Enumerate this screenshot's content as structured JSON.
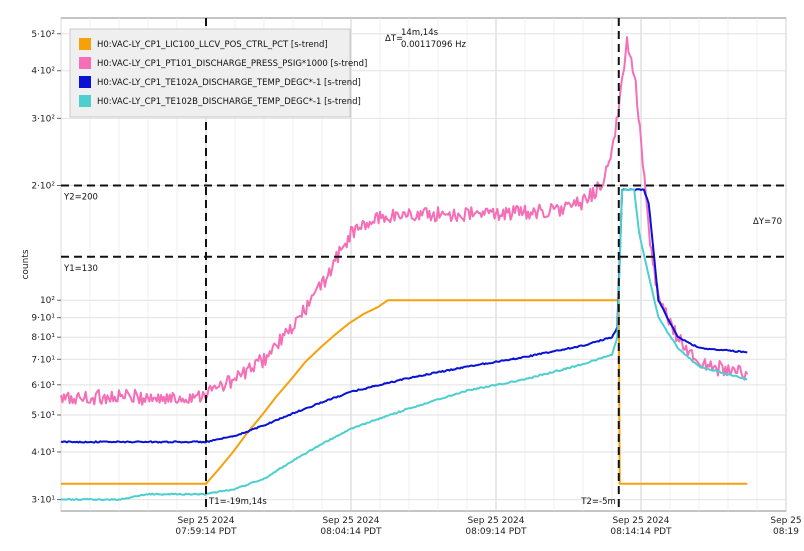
{
  "chart_data": {
    "type": "line",
    "title": "",
    "xlabel": "",
    "ylabel": "counts",
    "yscale": "log",
    "ylim": [
      28,
      550
    ],
    "xlim": [
      "2024-09-25 07:54:14",
      "2024-09-25 08:19:14"
    ],
    "time_zone": "PDT",
    "grid": true,
    "legend_position": "top-left",
    "y_ticks": [
      {
        "value": 30,
        "label": "3·10¹"
      },
      {
        "value": 40,
        "label": "4·10¹"
      },
      {
        "value": 50,
        "label": "5·10¹"
      },
      {
        "value": 60,
        "label": "6·10¹"
      },
      {
        "value": 70,
        "label": "7·10¹"
      },
      {
        "value": 80,
        "label": "8·10¹"
      },
      {
        "value": 90,
        "label": "9·10¹"
      },
      {
        "value": 100,
        "label": "10²"
      },
      {
        "value": 200,
        "label": "2·10²"
      },
      {
        "value": 300,
        "label": "3·10²"
      },
      {
        "value": 400,
        "label": "4·10²"
      },
      {
        "value": 500,
        "label": "5·10²"
      }
    ],
    "x_ticks": [
      {
        "time": "2024-09-25 07:59:14",
        "date": "Sep 25 2024",
        "time_label": "07:59:14 PDT"
      },
      {
        "time": "2024-09-25 08:04:14",
        "date": "Sep 25 2024",
        "time_label": "08:04:14 PDT"
      },
      {
        "time": "2024-09-25 08:09:14",
        "date": "Sep 25 2024",
        "time_label": "08:09:14 PDT"
      },
      {
        "time": "2024-09-25 08:14:14",
        "date": "Sep 25 2024",
        "time_label": "08:14:14 PDT"
      },
      {
        "time": "2024-09-25 08:19:14",
        "date": "Sep 25",
        "time_label": "08:19"
      }
    ],
    "cursors": {
      "t1": {
        "time": "2024-09-25 07:59:14",
        "label": "T1=-19m,14s"
      },
      "t2": {
        "time": "2024-09-25 08:13:28",
        "label": "T2=-5m"
      },
      "y1": {
        "value": 130,
        "label": "Y1=130"
      },
      "y2": {
        "value": 200,
        "label": "Y2=200"
      },
      "delta_t_prefix": "ΔT=",
      "delta_t_value": "14m,14s",
      "delta_t_freq": "0.00117096 Hz",
      "delta_y": "ΔY=70"
    },
    "series": [
      {
        "name": "H0:VAC-LY_CP1_LIC100_LLCV_POS_CTRL_PCT [s-trend]",
        "color": "#f5a10a",
        "noise": 0,
        "points": [
          [
            "2024-09-25 07:54:14",
            33
          ],
          [
            "2024-09-25 07:59:14",
            33
          ],
          [
            "2024-09-25 07:59:40",
            36
          ],
          [
            "2024-09-25 08:00:10",
            40
          ],
          [
            "2024-09-25 08:00:40",
            45
          ],
          [
            "2024-09-25 08:01:10",
            50
          ],
          [
            "2024-09-25 08:01:40",
            56
          ],
          [
            "2024-09-25 08:02:10",
            62
          ],
          [
            "2024-09-25 08:02:40",
            69
          ],
          [
            "2024-09-25 08:03:10",
            75
          ],
          [
            "2024-09-25 08:03:40",
            81
          ],
          [
            "2024-09-25 08:04:10",
            87
          ],
          [
            "2024-09-25 08:04:40",
            92
          ],
          [
            "2024-09-25 08:05:10",
            96
          ],
          [
            "2024-09-25 08:05:30",
            100
          ],
          [
            "2024-09-25 08:13:28",
            100
          ],
          [
            "2024-09-25 08:13:30",
            33
          ],
          [
            "2024-09-25 08:17:54",
            33
          ]
        ]
      },
      {
        "name": "H0:VAC-LY_CP1_PT101_DISCHARGE_PRESS_PSIG*1000 [s-trend]",
        "color": "#f46fb7",
        "noise": 0.045,
        "points": [
          [
            "2024-09-25 07:54:14",
            55
          ],
          [
            "2024-09-25 07:56:14",
            56
          ],
          [
            "2024-09-25 07:58:14",
            55
          ],
          [
            "2024-09-25 07:59:14",
            57
          ],
          [
            "2024-09-25 08:00:14",
            62
          ],
          [
            "2024-09-25 08:01:14",
            70
          ],
          [
            "2024-09-25 08:02:14",
            85
          ],
          [
            "2024-09-25 08:03:14",
            110
          ],
          [
            "2024-09-25 08:04:14",
            150
          ],
          [
            "2024-09-25 08:05:14",
            165
          ],
          [
            "2024-09-25 08:06:14",
            168
          ],
          [
            "2024-09-25 08:08:14",
            168
          ],
          [
            "2024-09-25 08:10:14",
            170
          ],
          [
            "2024-09-25 08:11:14",
            172
          ],
          [
            "2024-09-25 08:12:14",
            180
          ],
          [
            "2024-09-25 08:12:50",
            200
          ],
          [
            "2024-09-25 08:13:14",
            240
          ],
          [
            "2024-09-25 08:13:30",
            330
          ],
          [
            "2024-09-25 08:13:45",
            480
          ],
          [
            "2024-09-25 08:14:00",
            400
          ],
          [
            "2024-09-25 08:14:15",
            260
          ],
          [
            "2024-09-25 08:14:30",
            150
          ],
          [
            "2024-09-25 08:14:50",
            100
          ],
          [
            "2024-09-25 08:15:30",
            80
          ],
          [
            "2024-09-25 08:16:14",
            68
          ],
          [
            "2024-09-25 08:17:54",
            64
          ]
        ]
      },
      {
        "name": "H0:VAC-LY_CP1_TE102A_DISCHARGE_TEMP_DEGC*-1 [s-trend]",
        "color": "#0a12d4",
        "noise": 0.004,
        "points": [
          [
            "2024-09-25 07:54:14",
            42.5
          ],
          [
            "2024-09-25 07:59:14",
            42.5
          ],
          [
            "2024-09-25 08:00:14",
            44
          ],
          [
            "2024-09-25 08:01:14",
            47
          ],
          [
            "2024-09-25 08:02:14",
            50.5
          ],
          [
            "2024-09-25 08:03:14",
            54
          ],
          [
            "2024-09-25 08:04:14",
            57.5
          ],
          [
            "2024-09-25 08:05:14",
            60
          ],
          [
            "2024-09-25 08:06:14",
            62.5
          ],
          [
            "2024-09-25 08:08:14",
            67
          ],
          [
            "2024-09-25 08:10:14",
            71
          ],
          [
            "2024-09-25 08:12:14",
            76
          ],
          [
            "2024-09-25 08:13:14",
            80
          ],
          [
            "2024-09-25 08:13:25",
            85
          ],
          [
            "2024-09-25 08:13:35",
            195
          ],
          [
            "2024-09-25 08:14:20",
            195
          ],
          [
            "2024-09-25 08:14:30",
            180
          ],
          [
            "2024-09-25 08:14:50",
            100
          ],
          [
            "2024-09-25 08:15:30",
            80
          ],
          [
            "2024-09-25 08:16:14",
            75
          ],
          [
            "2024-09-25 08:17:54",
            73
          ]
        ]
      },
      {
        "name": "H0:VAC-LY_CP1_TE102B_DISCHARGE_TEMP_DEGC*-1 [s-trend]",
        "color": "#4ecfcf",
        "noise": 0.004,
        "points": [
          [
            "2024-09-25 07:54:14",
            30
          ],
          [
            "2024-09-25 07:56:14",
            30
          ],
          [
            "2024-09-25 07:57:14",
            31
          ],
          [
            "2024-09-25 07:59:14",
            31
          ],
          [
            "2024-09-25 08:00:14",
            32
          ],
          [
            "2024-09-25 08:01:14",
            34
          ],
          [
            "2024-09-25 08:02:14",
            38
          ],
          [
            "2024-09-25 08:03:14",
            42
          ],
          [
            "2024-09-25 08:04:14",
            46
          ],
          [
            "2024-09-25 08:05:14",
            49
          ],
          [
            "2024-09-25 08:06:14",
            52
          ],
          [
            "2024-09-25 08:08:14",
            58
          ],
          [
            "2024-09-25 08:10:14",
            62
          ],
          [
            "2024-09-25 08:12:14",
            68
          ],
          [
            "2024-09-25 08:13:14",
            72
          ],
          [
            "2024-09-25 08:13:25",
            80
          ],
          [
            "2024-09-25 08:13:35",
            195
          ],
          [
            "2024-09-25 08:14:00",
            195
          ],
          [
            "2024-09-25 08:14:10",
            150
          ],
          [
            "2024-09-25 08:14:50",
            90
          ],
          [
            "2024-09-25 08:15:30",
            75
          ],
          [
            "2024-09-25 08:16:14",
            67
          ],
          [
            "2024-09-25 08:17:54",
            62
          ]
        ]
      }
    ]
  }
}
